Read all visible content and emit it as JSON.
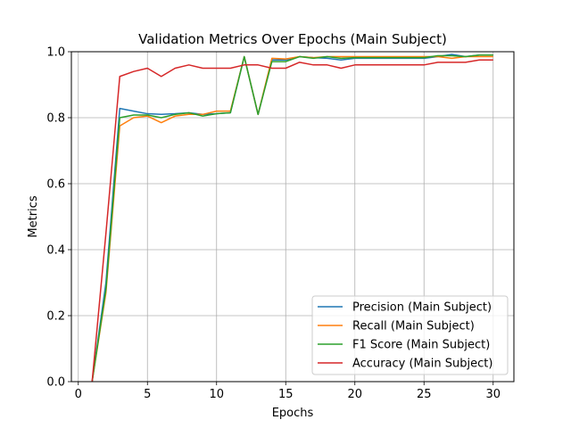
{
  "chart_data": {
    "type": "line",
    "title": "Validation Metrics Over Epochs (Main Subject)",
    "xlabel": "Epochs",
    "ylabel": "Metrics",
    "xlim": [
      -0.5,
      31.5
    ],
    "ylim": [
      0.0,
      1.0
    ],
    "xticks": [
      0,
      5,
      10,
      15,
      20,
      25,
      30
    ],
    "yticks": [
      0.0,
      0.2,
      0.4,
      0.6,
      0.8,
      1.0
    ],
    "xtick_labels": [
      "0",
      "5",
      "10",
      "15",
      "20",
      "25",
      "30"
    ],
    "ytick_labels": [
      "0.0",
      "0.2",
      "0.4",
      "0.6",
      "0.8",
      "1.0"
    ],
    "grid": true,
    "legend_position": "lower-right",
    "x": [
      1,
      2,
      3,
      4,
      5,
      6,
      7,
      8,
      9,
      10,
      11,
      12,
      13,
      14,
      15,
      16,
      17,
      18,
      19,
      20,
      21,
      22,
      23,
      24,
      25,
      26,
      27,
      28,
      29,
      30
    ],
    "series": [
      {
        "name": "Precision (Main Subject)",
        "color": "#1f77b4",
        "values": [
          0.0,
          0.3,
          0.828,
          0.82,
          0.812,
          0.81,
          0.812,
          0.815,
          0.81,
          0.812,
          0.815,
          0.985,
          0.81,
          0.975,
          0.975,
          0.985,
          0.982,
          0.98,
          0.975,
          0.98,
          0.98,
          0.98,
          0.98,
          0.98,
          0.98,
          0.985,
          0.992,
          0.985,
          0.99,
          0.99
        ]
      },
      {
        "name": "Recall (Main Subject)",
        "color": "#ff7f0e",
        "values": [
          0.0,
          0.27,
          0.775,
          0.8,
          0.805,
          0.785,
          0.805,
          0.81,
          0.81,
          0.82,
          0.82,
          0.985,
          0.81,
          0.98,
          0.978,
          0.985,
          0.982,
          0.985,
          0.985,
          0.985,
          0.985,
          0.985,
          0.985,
          0.985,
          0.985,
          0.985,
          0.98,
          0.985,
          0.985,
          0.985
        ]
      },
      {
        "name": "F1 Score (Main Subject)",
        "color": "#2ca02c",
        "values": [
          0.0,
          0.28,
          0.8,
          0.808,
          0.808,
          0.8,
          0.81,
          0.815,
          0.805,
          0.812,
          0.815,
          0.985,
          0.81,
          0.97,
          0.97,
          0.985,
          0.98,
          0.985,
          0.98,
          0.982,
          0.982,
          0.982,
          0.982,
          0.982,
          0.982,
          0.988,
          0.988,
          0.985,
          0.99,
          0.99
        ]
      },
      {
        "name": "Accuracy (Main Subject)",
        "color": "#d62728",
        "values": [
          0.0,
          0.45,
          0.925,
          0.94,
          0.95,
          0.925,
          0.95,
          0.96,
          0.95,
          0.95,
          0.95,
          0.96,
          0.96,
          0.95,
          0.95,
          0.968,
          0.96,
          0.96,
          0.95,
          0.96,
          0.96,
          0.96,
          0.96,
          0.96,
          0.96,
          0.968,
          0.968,
          0.968,
          0.975,
          0.975
        ]
      }
    ]
  }
}
